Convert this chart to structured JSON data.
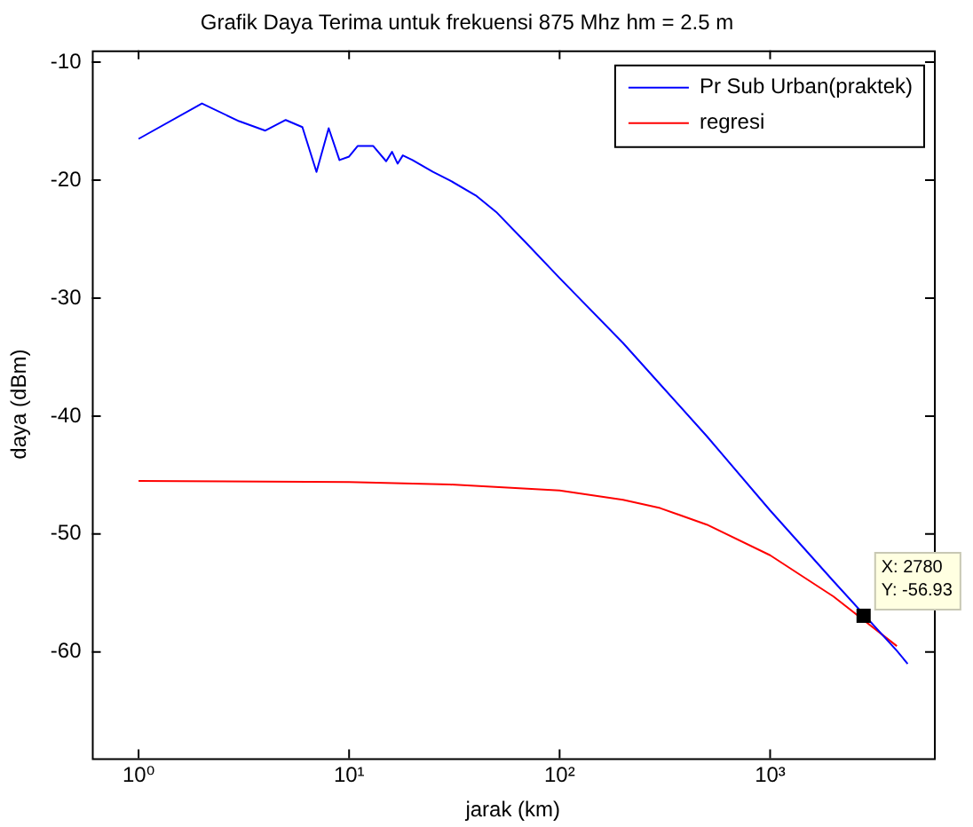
{
  "chart_data": {
    "type": "line",
    "title": "Grafik Daya Terima untuk frekuensi 875 Mhz hm = 2.5 m",
    "xlabel": "jarak (km)",
    "ylabel": "daya (dBm)",
    "log": "x",
    "xlim": [
      0.6,
      6000
    ],
    "xticks": [
      {
        "value": 1,
        "label": "10⁰"
      },
      {
        "value": 10,
        "label": "10¹"
      },
      {
        "value": 100,
        "label": "10²"
      },
      {
        "value": 1000,
        "label": "10³"
      }
    ],
    "ylim": [
      -69,
      -9
    ],
    "yticks": [
      -60,
      -50,
      -40,
      -30,
      -20,
      -10
    ],
    "grid": false,
    "legend": "top right",
    "marker": "none",
    "line_style": "solid",
    "series": [
      {
        "name": "Pr Sub Urban(praktek)",
        "color": "#0000ff",
        "x": [
          1,
          2,
          3,
          4,
          5,
          6,
          7,
          8,
          9,
          10,
          11,
          13,
          15,
          16,
          17,
          18,
          20,
          25,
          30,
          40,
          50,
          70,
          100,
          200,
          300,
          500,
          1000,
          2000,
          4000,
          4500
        ],
        "values": [
          -16.5,
          -13.5,
          -15,
          -15.8,
          -14.9,
          -15.5,
          -19.3,
          -15.6,
          -18.3,
          -18,
          -17.1,
          -17.1,
          -18.4,
          -17.6,
          -18.6,
          -17.9,
          -18.3,
          -19.3,
          -20,
          -21.3,
          -22.7,
          -25.4,
          -28.3,
          -33.8,
          -37.3,
          -41.7,
          -48,
          -54,
          -59.9,
          -61
        ]
      },
      {
        "name": "regresi",
        "color": "#ff0000",
        "x": [
          1,
          10,
          30,
          100,
          200,
          300,
          500,
          1000,
          2000,
          4000
        ],
        "values": [
          -45.5,
          -45.6,
          -45.8,
          -46.3,
          -47.1,
          -47.8,
          -49.2,
          -51.8,
          -55.3,
          -59.5
        ]
      }
    ],
    "annotations": [
      {
        "text": "X: 2780\nY: -56.93",
        "x": 2780,
        "y": -56.93
      }
    ]
  }
}
